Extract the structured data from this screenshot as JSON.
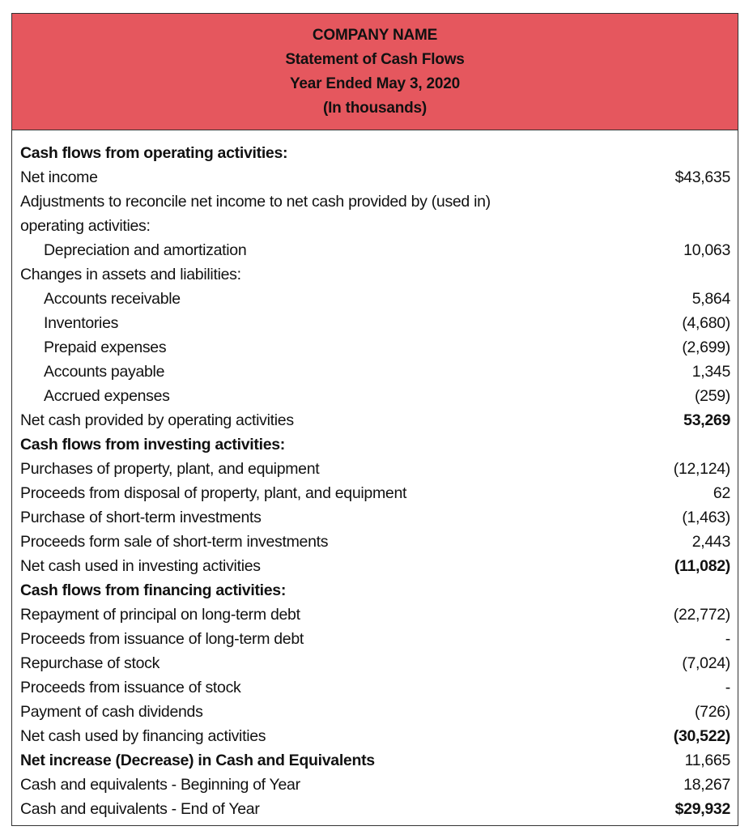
{
  "header": {
    "company": "COMPANY NAME",
    "title": "Statement of Cash Flows",
    "period": "Year Ended May 3, 2020",
    "units": "(In thousands)",
    "color": "#e5575e"
  },
  "rows": [
    {
      "label": "Cash flows from operating activities:",
      "value": "",
      "indent": false,
      "bold_label": true,
      "bold_value": false
    },
    {
      "label": "Net income",
      "value": "$43,635",
      "indent": false,
      "bold_label": false,
      "bold_value": false
    },
    {
      "label": "Adjustments to reconcile net income to net cash provided by (used in)",
      "value": "",
      "indent": false,
      "bold_label": false,
      "bold_value": false
    },
    {
      "label": "operating activities:",
      "value": "",
      "indent": false,
      "bold_label": false,
      "bold_value": false
    },
    {
      "label": "Depreciation and amortization",
      "value": "10,063",
      "indent": true,
      "bold_label": false,
      "bold_value": false
    },
    {
      "label": "Changes in assets and liabilities:",
      "value": "",
      "indent": false,
      "bold_label": false,
      "bold_value": false
    },
    {
      "label": "Accounts receivable",
      "value": "5,864",
      "indent": true,
      "bold_label": false,
      "bold_value": false
    },
    {
      "label": "Inventories",
      "value": "(4,680)",
      "indent": true,
      "bold_label": false,
      "bold_value": false
    },
    {
      "label": "Prepaid expenses",
      "value": "(2,699)",
      "indent": true,
      "bold_label": false,
      "bold_value": false
    },
    {
      "label": "Accounts payable",
      "value": "1,345",
      "indent": true,
      "bold_label": false,
      "bold_value": false
    },
    {
      "label": "Accrued expenses",
      "value": "(259)",
      "indent": true,
      "bold_label": false,
      "bold_value": false
    },
    {
      "label": "Net cash provided by operating activities",
      "value": "53,269",
      "indent": false,
      "bold_label": false,
      "bold_value": true
    },
    {
      "label": "Cash flows from investing activities:",
      "value": "",
      "indent": false,
      "bold_label": true,
      "bold_value": false
    },
    {
      "label": "Purchases of property, plant, and equipment",
      "value": "(12,124)",
      "indent": false,
      "bold_label": false,
      "bold_value": false
    },
    {
      "label": "Proceeds from disposal of property, plant, and equipment",
      "value": "62",
      "indent": false,
      "bold_label": false,
      "bold_value": false
    },
    {
      "label": "Purchase of short-term investments",
      "value": "(1,463)",
      "indent": false,
      "bold_label": false,
      "bold_value": false
    },
    {
      "label": "Proceeds form sale of short-term investments",
      "value": "2,443",
      "indent": false,
      "bold_label": false,
      "bold_value": false
    },
    {
      "label": "Net cash used in investing activities",
      "value": "(11,082)",
      "indent": false,
      "bold_label": false,
      "bold_value": true
    },
    {
      "label": "Cash flows from financing activities:",
      "value": "",
      "indent": false,
      "bold_label": true,
      "bold_value": false
    },
    {
      "label": "Repayment of principal on long-term debt",
      "value": "(22,772)",
      "indent": false,
      "bold_label": false,
      "bold_value": false
    },
    {
      "label": "Proceeds from issuance of long-term debt",
      "value": "-",
      "indent": false,
      "bold_label": false,
      "bold_value": false
    },
    {
      "label": "Repurchase of stock",
      "value": "(7,024)",
      "indent": false,
      "bold_label": false,
      "bold_value": false
    },
    {
      "label": "Proceeds from issuance of stock",
      "value": "-",
      "indent": false,
      "bold_label": false,
      "bold_value": false
    },
    {
      "label": "Payment of cash dividends",
      "value": "(726)",
      "indent": false,
      "bold_label": false,
      "bold_value": false
    },
    {
      "label": "Net cash used by financing activities",
      "value": "(30,522)",
      "indent": false,
      "bold_label": false,
      "bold_value": true
    },
    {
      "label": "Net increase (Decrease) in Cash and Equivalents",
      "value": "11,665",
      "indent": false,
      "bold_label": true,
      "bold_value": false
    },
    {
      "label": "Cash and equivalents - Beginning of Year",
      "value": "18,267",
      "indent": false,
      "bold_label": false,
      "bold_value": false
    },
    {
      "label": "Cash and equivalents - End of Year",
      "value": "$29,932",
      "indent": false,
      "bold_label": false,
      "bold_value": true
    }
  ]
}
